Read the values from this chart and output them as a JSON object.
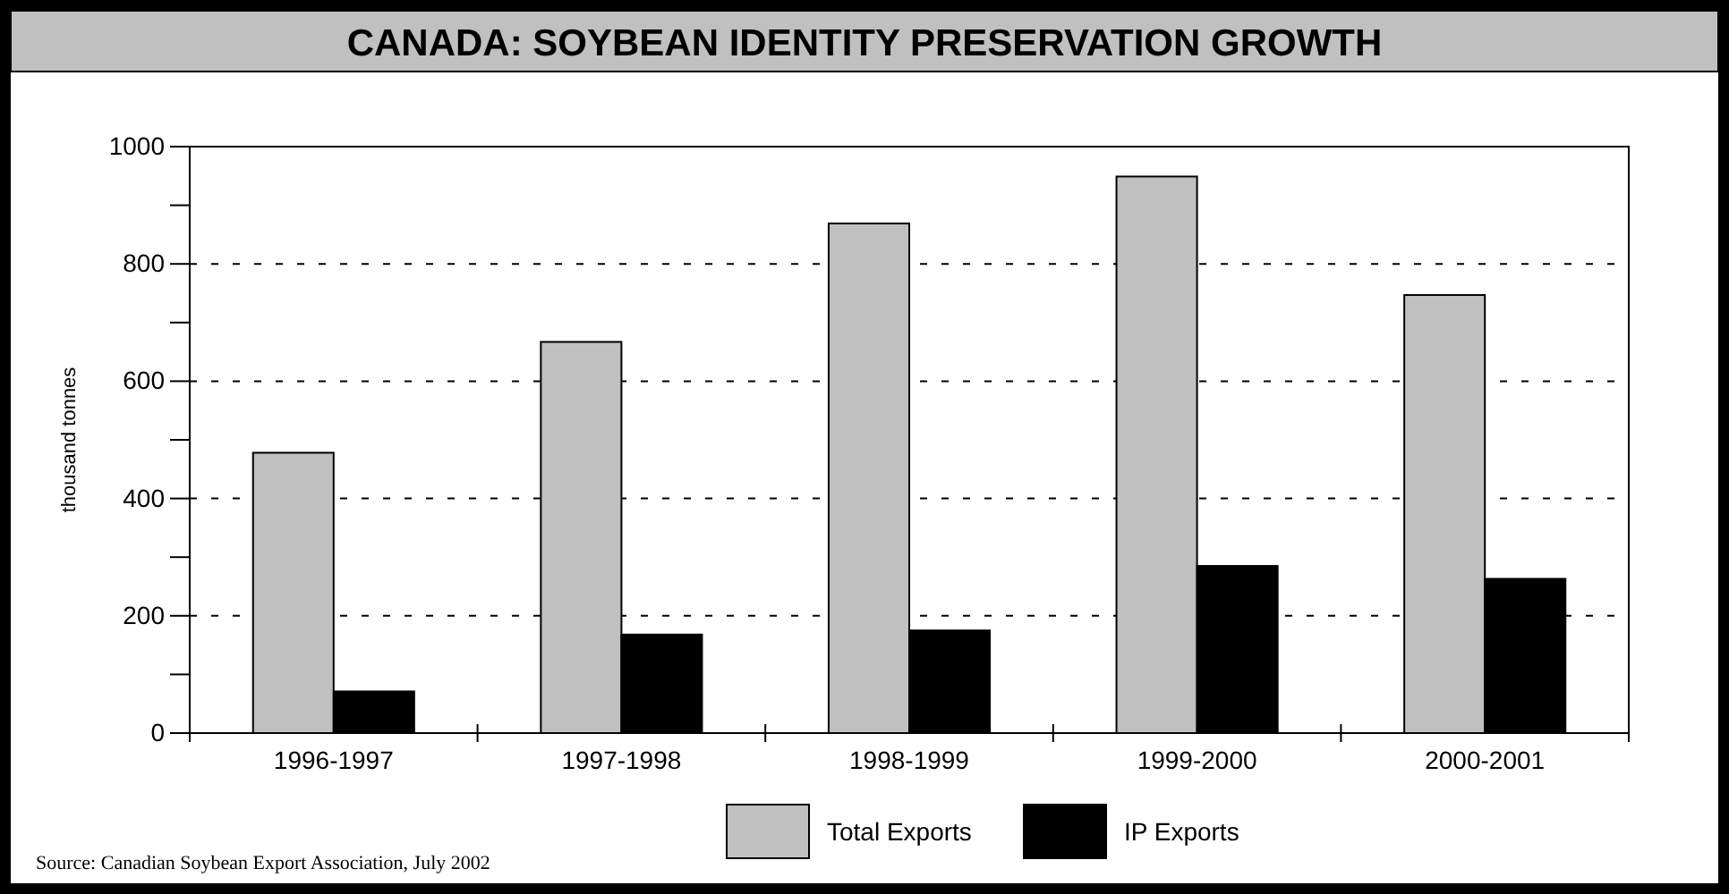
{
  "chart_data": {
    "type": "bar",
    "title": "CANADA: SOYBEAN IDENTITY PRESERVATION GROWTH",
    "ylabel": "thousand tonnes",
    "categories": [
      "1996-1997",
      "1997-1998",
      "1998-1999",
      "1999-2000",
      "2000-2001"
    ],
    "series": [
      {
        "name": "Total Exports",
        "color": "#c0c0c0",
        "values": [
          478,
          667,
          869,
          949,
          747
        ]
      },
      {
        "name": "IP Exports",
        "color": "#000000",
        "values": [
          71,
          168,
          175,
          285,
          263
        ]
      }
    ],
    "ylim": [
      0,
      1000
    ],
    "yticks": [
      0,
      {
        "value": 100,
        "label": null
      },
      200,
      {
        "value": 300,
        "label": null
      },
      400,
      {
        "value": 500,
        "label": null
      },
      600,
      {
        "value": 700,
        "label": null
      },
      800,
      {
        "value": 900,
        "label": null
      },
      1000
    ],
    "grid": "y",
    "legend": "bottom",
    "annotations": [
      "Source: Canadian Soybean Export Association, July 2002"
    ]
  }
}
